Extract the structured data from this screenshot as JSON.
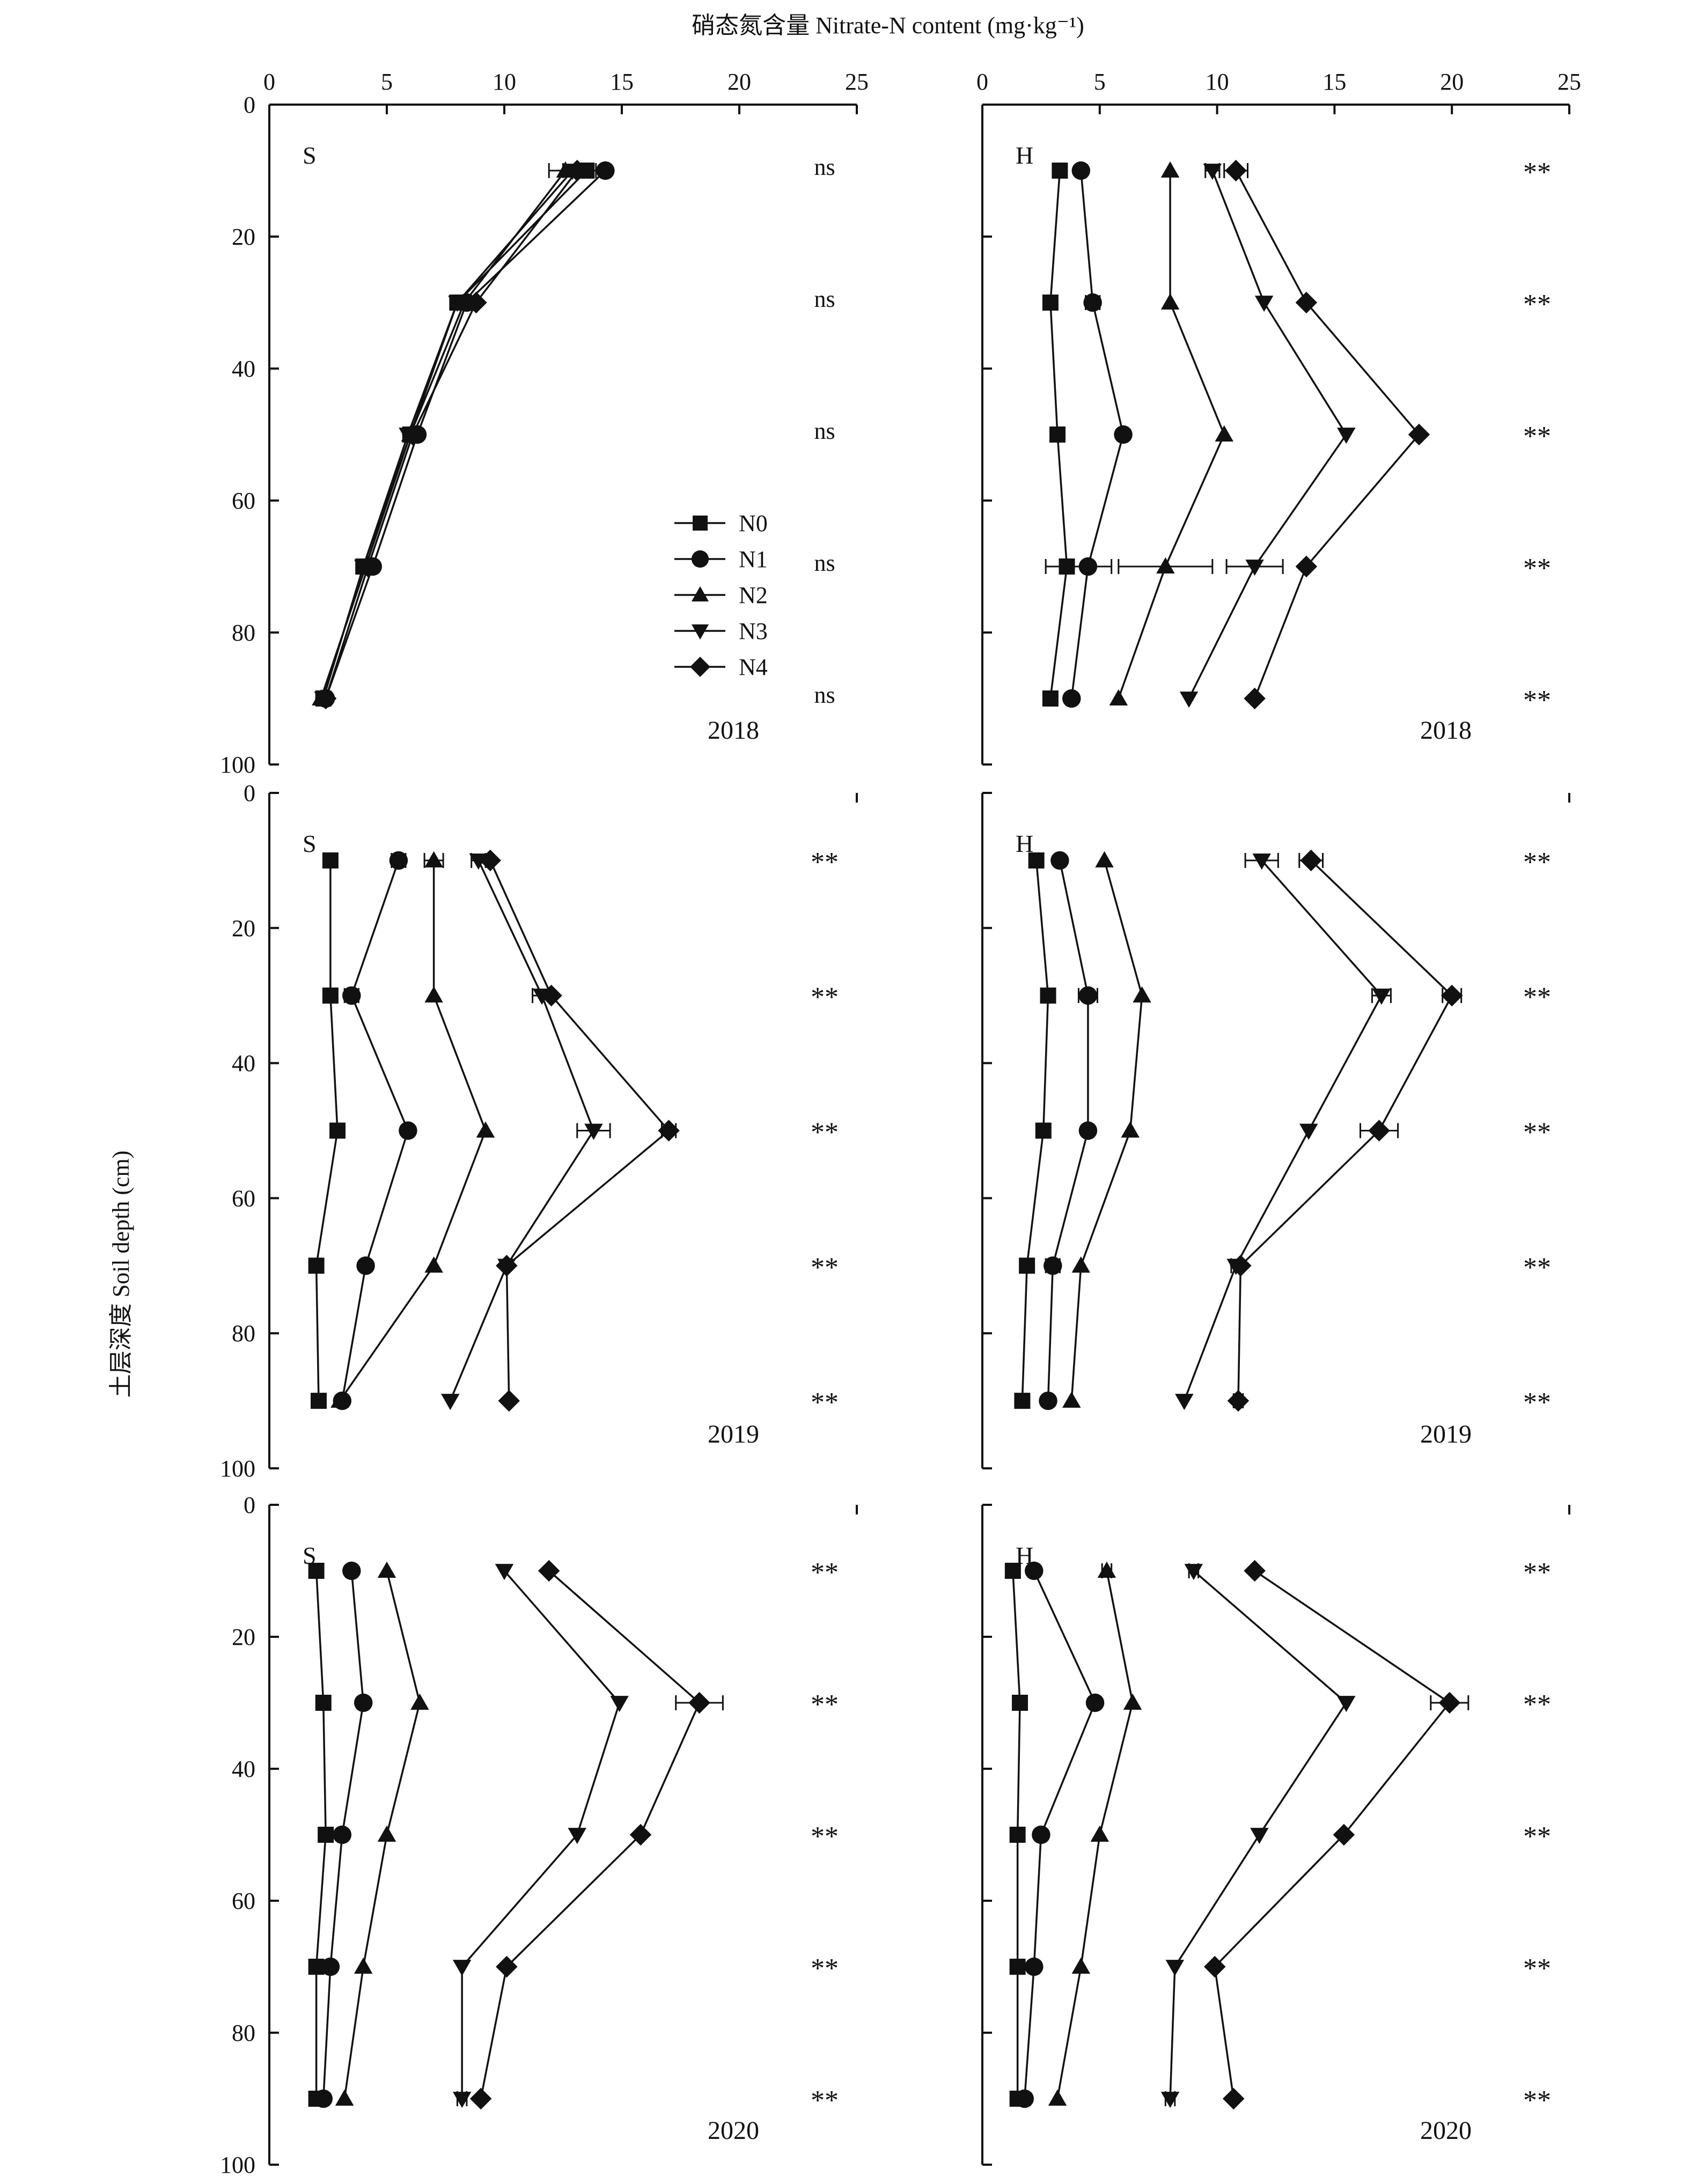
{
  "figure": {
    "top_axis_label": "硝态氮含量 Nitrate-N content (mg·kg⁻¹)",
    "y_axis_label": "土层深度 Soil depth (cm)"
  },
  "chart_data": [
    {
      "type": "line",
      "panel": "S",
      "year": "2018",
      "col": 0,
      "row": 0,
      "xlim": [
        0,
        25
      ],
      "ylim": [
        0,
        100
      ],
      "y_inverted": true,
      "x_ticks": [
        0,
        5,
        10,
        15,
        20,
        25
      ],
      "y_ticks": [
        0,
        20,
        40,
        60,
        80,
        100
      ],
      "legend": {
        "placement": "center-right",
        "entries": [
          "N0",
          "N1",
          "N2",
          "N3",
          "N4"
        ]
      },
      "depths": [
        10,
        30,
        50,
        70,
        90
      ],
      "significance": [
        "ns",
        "ns",
        "ns",
        "ns",
        "ns"
      ],
      "series": [
        {
          "name": "N0",
          "marker": "square",
          "x": [
            13.5,
            8.0,
            6.0,
            4.0,
            2.3
          ],
          "err": [
            0,
            0,
            0,
            0,
            0
          ]
        },
        {
          "name": "N1",
          "marker": "circle",
          "x": [
            14.3,
            8.4,
            6.3,
            4.4,
            2.4
          ],
          "err": [
            0,
            0,
            0,
            0,
            0
          ]
        },
        {
          "name": "N2",
          "marker": "triangle-up",
          "x": [
            12.6,
            8.3,
            6.0,
            4.1,
            2.2
          ],
          "err": [
            0,
            0,
            0,
            0,
            0
          ]
        },
        {
          "name": "N3",
          "marker": "triangle-down",
          "x": [
            12.9,
            8.0,
            5.9,
            4.0,
            2.3
          ],
          "err": [
            1.0,
            0,
            0,
            0,
            0
          ]
        },
        {
          "name": "N4",
          "marker": "diamond",
          "x": [
            13.1,
            8.8,
            6.1,
            4.2,
            2.4
          ],
          "err": [
            0.6,
            0,
            0,
            0,
            0
          ]
        }
      ]
    },
    {
      "type": "line",
      "panel": "H",
      "year": "2018",
      "col": 1,
      "row": 0,
      "xlim": [
        0,
        25
      ],
      "ylim": [
        0,
        100
      ],
      "y_inverted": true,
      "x_ticks": [
        0,
        5,
        10,
        15,
        20,
        25
      ],
      "y_ticks": [
        0,
        20,
        40,
        60,
        80,
        100
      ],
      "depths": [
        10,
        30,
        50,
        70,
        90
      ],
      "significance": [
        "**",
        "**",
        "**",
        "**",
        "**"
      ],
      "series": [
        {
          "name": "N0",
          "marker": "square",
          "x": [
            3.3,
            2.9,
            3.2,
            3.6,
            2.9
          ],
          "err": [
            0,
            0,
            0,
            0.9,
            0
          ]
        },
        {
          "name": "N1",
          "marker": "circle",
          "x": [
            4.2,
            4.7,
            6.0,
            4.5,
            3.8
          ],
          "err": [
            0,
            0.3,
            0,
            1.0,
            0
          ]
        },
        {
          "name": "N2",
          "marker": "triangle-up",
          "x": [
            8.0,
            8.0,
            10.3,
            7.8,
            5.8
          ],
          "err": [
            0,
            0,
            0,
            2.0,
            0
          ]
        },
        {
          "name": "N3",
          "marker": "triangle-down",
          "x": [
            9.8,
            12.0,
            15.5,
            11.6,
            8.8
          ],
          "err": [
            0.3,
            0,
            0,
            1.2,
            0
          ]
        },
        {
          "name": "N4",
          "marker": "diamond",
          "x": [
            10.8,
            13.8,
            18.6,
            13.8,
            11.6
          ],
          "err": [
            0.5,
            0,
            0,
            0,
            0
          ]
        }
      ]
    },
    {
      "type": "line",
      "panel": "S",
      "year": "2019",
      "col": 0,
      "row": 1,
      "xlim": [
        0,
        25
      ],
      "ylim": [
        0,
        100
      ],
      "y_inverted": true,
      "x_ticks": [
        0,
        5,
        10,
        15,
        20,
        25
      ],
      "y_ticks": [
        0,
        20,
        40,
        60,
        80,
        100
      ],
      "depths": [
        10,
        30,
        50,
        70,
        90
      ],
      "significance": [
        "**",
        "**",
        "**",
        "**",
        "**"
      ],
      "series": [
        {
          "name": "N0",
          "marker": "square",
          "x": [
            2.6,
            2.6,
            2.9,
            2.0,
            2.1
          ],
          "err": [
            0,
            0,
            0,
            0,
            0
          ]
        },
        {
          "name": "N1",
          "marker": "circle",
          "x": [
            5.5,
            3.5,
            5.9,
            4.1,
            3.1
          ],
          "err": [
            0.3,
            0.3,
            0,
            0,
            0
          ]
        },
        {
          "name": "N2",
          "marker": "triangle-up",
          "x": [
            7.0,
            7.0,
            9.2,
            7.0,
            3.0
          ],
          "err": [
            0.4,
            0,
            0,
            0,
            0
          ]
        },
        {
          "name": "N3",
          "marker": "triangle-down",
          "x": [
            8.9,
            11.6,
            13.8,
            10.1,
            7.7
          ],
          "err": [
            0.3,
            0.4,
            0.7,
            0,
            0
          ]
        },
        {
          "name": "N4",
          "marker": "diamond",
          "x": [
            9.4,
            12.0,
            17.0,
            10.1,
            10.2
          ],
          "err": [
            0,
            0,
            0.3,
            0,
            0
          ]
        }
      ]
    },
    {
      "type": "line",
      "panel": "H",
      "year": "2019",
      "col": 1,
      "row": 1,
      "xlim": [
        0,
        25
      ],
      "ylim": [
        0,
        100
      ],
      "y_inverted": true,
      "x_ticks": [
        0,
        5,
        10,
        15,
        20,
        25
      ],
      "y_ticks": [
        0,
        20,
        40,
        60,
        80,
        100
      ],
      "depths": [
        10,
        30,
        50,
        70,
        90
      ],
      "significance": [
        "**",
        "**",
        "**",
        "**",
        "**"
      ],
      "series": [
        {
          "name": "N0",
          "marker": "square",
          "x": [
            2.3,
            2.8,
            2.6,
            1.9,
            1.7
          ],
          "err": [
            0,
            0,
            0,
            0,
            0
          ]
        },
        {
          "name": "N1",
          "marker": "circle",
          "x": [
            3.3,
            4.5,
            4.5,
            3.0,
            2.8
          ],
          "err": [
            0,
            0.4,
            0,
            0.3,
            0
          ]
        },
        {
          "name": "N2",
          "marker": "triangle-up",
          "x": [
            5.2,
            6.8,
            6.3,
            4.2,
            3.8
          ],
          "err": [
            0,
            0,
            0,
            0,
            0
          ]
        },
        {
          "name": "N3",
          "marker": "triangle-down",
          "x": [
            11.9,
            17.0,
            13.9,
            10.8,
            8.6
          ],
          "err": [
            0.7,
            0.4,
            0,
            0.2,
            0
          ]
        },
        {
          "name": "N4",
          "marker": "diamond",
          "x": [
            14.0,
            20.0,
            16.9,
            11.0,
            10.9
          ],
          "err": [
            0.5,
            0.4,
            0.8,
            0,
            0.2
          ]
        }
      ]
    },
    {
      "type": "line",
      "panel": "S",
      "year": "2020",
      "col": 0,
      "row": 2,
      "xlim": [
        0,
        25
      ],
      "ylim": [
        0,
        100
      ],
      "y_inverted": true,
      "x_ticks": [
        0,
        5,
        10,
        15,
        20,
        25
      ],
      "y_ticks": [
        0,
        20,
        40,
        60,
        80,
        100
      ],
      "depths": [
        10,
        30,
        50,
        70,
        90
      ],
      "significance": [
        "**",
        "**",
        "**",
        "**",
        "**"
      ],
      "series": [
        {
          "name": "N0",
          "marker": "square",
          "x": [
            2.0,
            2.3,
            2.4,
            2.0,
            2.0
          ],
          "err": [
            0,
            0,
            0,
            0,
            0
          ]
        },
        {
          "name": "N1",
          "marker": "circle",
          "x": [
            3.5,
            4.0,
            3.1,
            2.6,
            2.3
          ],
          "err": [
            0,
            0,
            0,
            0.2,
            0
          ]
        },
        {
          "name": "N2",
          "marker": "triangle-up",
          "x": [
            5.0,
            6.4,
            5.0,
            4.0,
            3.2
          ],
          "err": [
            0,
            0,
            0,
            0,
            0
          ]
        },
        {
          "name": "N3",
          "marker": "triangle-down",
          "x": [
            10.0,
            14.9,
            13.1,
            8.2,
            8.2
          ],
          "err": [
            0,
            0,
            0,
            0,
            0.2
          ]
        },
        {
          "name": "N4",
          "marker": "diamond",
          "x": [
            11.9,
            18.3,
            15.8,
            10.1,
            9.0
          ],
          "err": [
            0,
            1.0,
            0,
            0,
            0
          ]
        }
      ]
    },
    {
      "type": "line",
      "panel": "H",
      "year": "2020",
      "col": 1,
      "row": 2,
      "xlim": [
        0,
        25
      ],
      "ylim": [
        0,
        100
      ],
      "y_inverted": true,
      "x_ticks": [
        0,
        5,
        10,
        15,
        20,
        25
      ],
      "y_ticks": [
        0,
        20,
        40,
        60,
        80,
        100
      ],
      "depths": [
        10,
        30,
        50,
        70,
        90
      ],
      "significance": [
        "**",
        "**",
        "**",
        "**",
        "**"
      ],
      "series": [
        {
          "name": "N0",
          "marker": "square",
          "x": [
            1.3,
            1.6,
            1.5,
            1.5,
            1.5
          ],
          "err": [
            0,
            0,
            0,
            0,
            0
          ]
        },
        {
          "name": "N1",
          "marker": "circle",
          "x": [
            2.2,
            4.8,
            2.5,
            2.2,
            1.8
          ],
          "err": [
            0,
            0,
            0,
            0,
            0
          ]
        },
        {
          "name": "N2",
          "marker": "triangle-up",
          "x": [
            5.3,
            6.4,
            5.0,
            4.2,
            3.2
          ],
          "err": [
            0.2,
            0,
            0,
            0,
            0
          ]
        },
        {
          "name": "N3",
          "marker": "triangle-down",
          "x": [
            9.0,
            15.5,
            11.8,
            8.2,
            8.0
          ],
          "err": [
            0.2,
            0,
            0,
            0,
            0.2
          ]
        },
        {
          "name": "N4",
          "marker": "diamond",
          "x": [
            11.6,
            19.9,
            15.4,
            9.9,
            10.7
          ],
          "err": [
            0,
            0.8,
            0,
            0,
            0
          ]
        }
      ]
    }
  ]
}
